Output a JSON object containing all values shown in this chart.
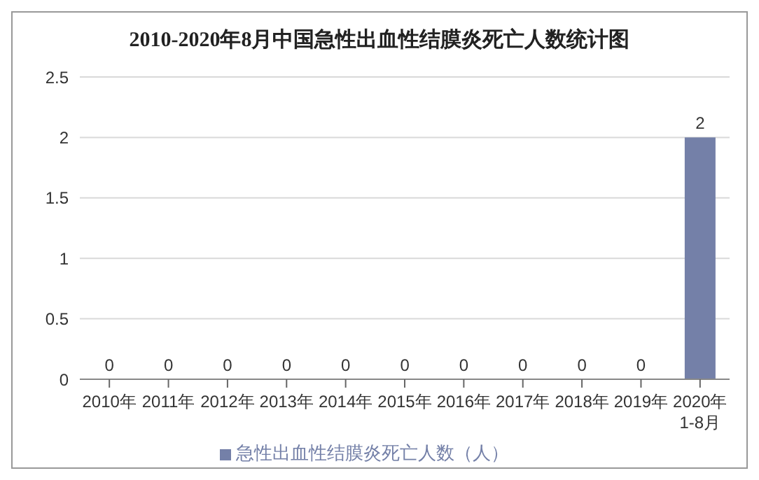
{
  "chart_data": {
    "type": "bar",
    "title": "2010-2020年8月中国急性出血性结膜炎死亡人数统计图",
    "categories": [
      "2010年",
      "2011年",
      "2012年",
      "2013年",
      "2014年",
      "2015年",
      "2016年",
      "2017年",
      "2018年",
      "2019年",
      "2020年1-8月"
    ],
    "series": [
      {
        "name": "急性出血性结膜炎死亡人数（人）",
        "color": "#7480a8",
        "values": [
          0,
          0,
          0,
          0,
          0,
          0,
          0,
          0,
          0,
          0,
          2
        ]
      }
    ],
    "ylim": [
      0,
      2.5
    ],
    "yticks": [
      0,
      0.5,
      1,
      1.5,
      2,
      2.5
    ],
    "grid": "y",
    "legend": "bottom",
    "data_labels": true
  }
}
